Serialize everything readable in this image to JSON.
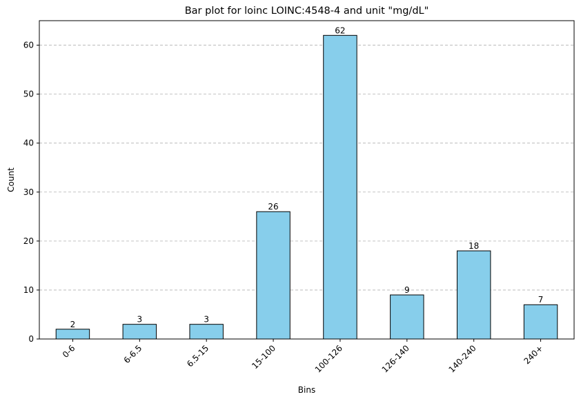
{
  "chart_data": {
    "type": "bar",
    "title": "Bar plot for loinc LOINC:4548-4 and unit \"mg/dL\"",
    "xlabel": "Bins",
    "ylabel": "Count",
    "categories": [
      "0-6",
      "6-6.5",
      "6.5-15",
      "15-100",
      "100-126",
      "126-140",
      "140-240",
      "240+"
    ],
    "values": [
      2,
      3,
      3,
      26,
      62,
      9,
      18,
      7
    ],
    "ylim": [
      0,
      65
    ],
    "yticks": [
      0,
      10,
      20,
      30,
      40,
      50,
      60
    ],
    "grid": "y-dashed",
    "bar_color": "#87CEEB",
    "bar_edge_color": "#000000",
    "data_labels": true,
    "xtick_rotation": -45
  }
}
